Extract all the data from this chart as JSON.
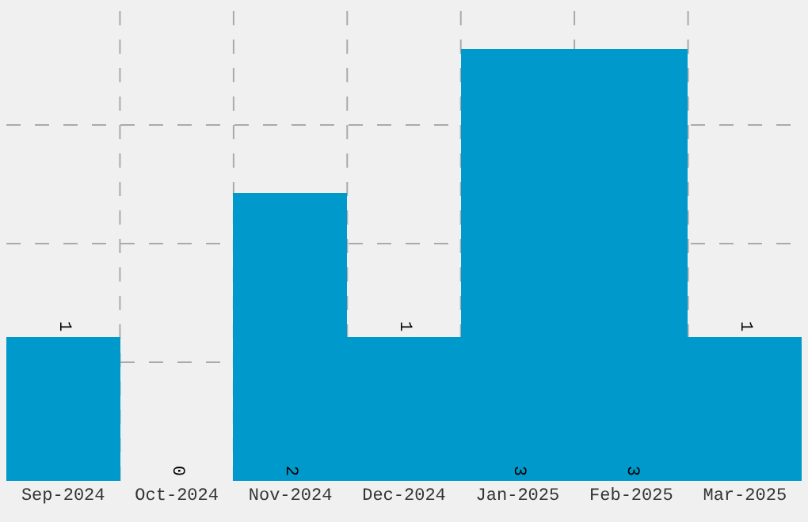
{
  "chart_data": {
    "type": "bar",
    "categories": [
      "Sep-2024",
      "Oct-2024",
      "Nov-2024",
      "Dec-2024",
      "Jan-2025",
      "Feb-2025",
      "Mar-2025"
    ],
    "values": [
      1,
      0,
      2,
      1,
      3,
      3,
      1
    ],
    "color": "#0099cc",
    "ylim": [
      0,
      3.3
    ],
    "yticks": [
      {
        "value": 0.825,
        "label": null
      },
      {
        "value": 1.65,
        "label": null
      },
      {
        "value": 2.475,
        "label": null
      }
    ],
    "tick_labels": "x",
    "grid": true,
    "data_labels": true
  }
}
